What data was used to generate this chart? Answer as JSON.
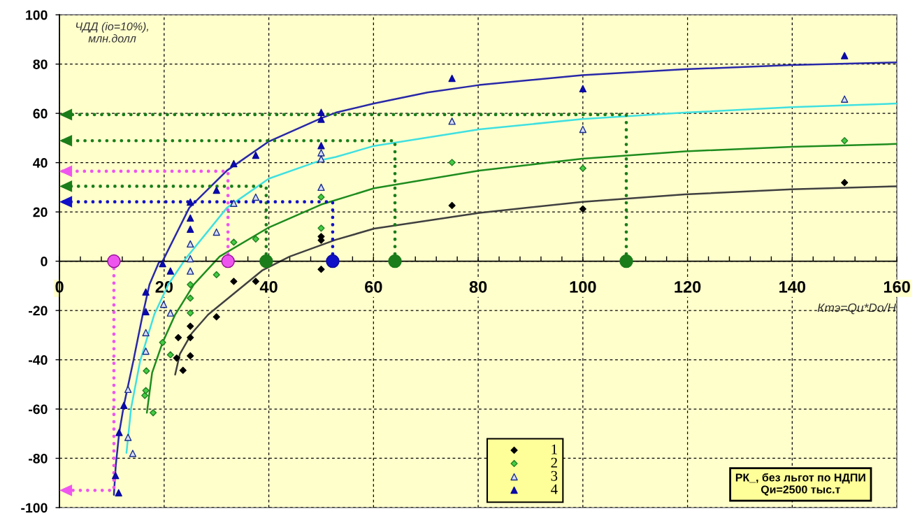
{
  "chart_data": {
    "type": "scatter",
    "xlabel": "Ктэ=Qи*Dо/H",
    "ylabel": "ЧДД (io=10%),\nмлн.долл",
    "annotations": [
      "РК_, без льгот по НДПИ\nQи=2500 тыс.т"
    ],
    "xlim": [
      0,
      160
    ],
    "ylim": [
      -100,
      100
    ],
    "xticks": [
      0,
      {
        "value": 4,
        "label": null
      },
      {
        "value": 8,
        "label": null
      },
      {
        "value": 12,
        "label": null
      },
      {
        "value": 16,
        "label": null
      },
      20,
      {
        "value": 24,
        "label": null
      },
      {
        "value": 28,
        "label": null
      },
      {
        "value": 32,
        "label": null
      },
      {
        "value": 36,
        "label": null
      },
      40,
      {
        "value": 44,
        "label": null
      },
      {
        "value": 48,
        "label": null
      },
      {
        "value": 52,
        "label": null
      },
      {
        "value": 56,
        "label": null
      },
      60,
      {
        "value": 64,
        "label": null
      },
      {
        "value": 68,
        "label": null
      },
      {
        "value": 72,
        "label": null
      },
      {
        "value": 76,
        "label": null
      },
      80,
      {
        "value": 84,
        "label": null
      },
      {
        "value": 88,
        "label": null
      },
      {
        "value": 92,
        "label": null
      },
      {
        "value": 96,
        "label": null
      },
      100,
      {
        "value": 104,
        "label": null
      },
      {
        "value": 108,
        "label": null
      },
      {
        "value": 112,
        "label": null
      },
      {
        "value": 116,
        "label": null
      },
      120,
      {
        "value": 124,
        "label": null
      },
      {
        "value": 128,
        "label": null
      },
      {
        "value": 132,
        "label": null
      },
      {
        "value": 136,
        "label": null
      },
      140,
      {
        "value": 144,
        "label": null
      },
      {
        "value": 148,
        "label": null
      },
      {
        "value": 152,
        "label": null
      },
      {
        "value": 156,
        "label": null
      },
      160
    ],
    "yticks": [
      -100,
      -80,
      -60,
      -40,
      -20,
      0,
      20,
      40,
      60,
      80,
      100
    ],
    "grid": true,
    "legend": "bottom",
    "series": [
      {
        "type": "line",
        "color": "#2828a8",
        "line_style": "solid",
        "x": [
          10.4,
          10.75,
          11.4,
          12.3,
          14.1,
          15.9,
          17.2,
          19,
          19.7,
          24.8,
          32,
          40,
          50,
          52.8,
          60.1,
          70.3,
          80.2,
          99.9,
          119.5,
          139.9,
          160
        ],
        "values": [
          -94.8,
          -83,
          -69.8,
          -58.5,
          -40.6,
          -21.7,
          -9.4,
          -0.5,
          0,
          21.7,
          36.8,
          48.6,
          58,
          60.3,
          64,
          68.5,
          71.5,
          75.5,
          77.9,
          79.6,
          80.7
        ]
      },
      {
        "type": "line",
        "color": "#40e0e0",
        "line_style": "solid",
        "x": [
          12.8,
          13.7,
          15.4,
          18.1,
          20.8,
          24.1,
          32,
          40,
          50,
          52.8,
          60.1,
          80.2,
          99.9,
          119.5,
          139.9,
          160
        ],
        "values": [
          -77.8,
          -59.4,
          -40.6,
          -21.7,
          -9.4,
          1,
          21.7,
          33.5,
          41,
          42.3,
          46.8,
          53.5,
          57.7,
          60.3,
          62.5,
          64
        ]
      },
      {
        "type": "line",
        "color": "#1e8c1e",
        "line_style": "solid",
        "x": [
          16.7,
          17.7,
          19.7,
          22.1,
          25.7,
          30.6,
          40,
          50,
          60.1,
          80.2,
          99.9,
          119.5,
          139.9,
          160
        ],
        "values": [
          -61.5,
          -45.3,
          -33,
          -21.7,
          -9.4,
          1.9,
          13.7,
          23,
          29.6,
          36.8,
          41.6,
          44.6,
          46.4,
          47.6
        ]
      },
      {
        "type": "line",
        "color": "#404040",
        "line_style": "solid",
        "x": [
          22.1,
          23,
          25.3,
          28.4,
          33.3,
          38.7,
          44,
          52.8,
          60.1,
          80.2,
          99.9,
          119.5,
          139.9,
          160
        ],
        "values": [
          -46,
          -37.7,
          -29.2,
          -21.7,
          -13.2,
          -3.8,
          1.9,
          8.7,
          13.2,
          19.6,
          24.1,
          27.1,
          29.2,
          30.4
        ]
      },
      {
        "type": "line",
        "color": "#ee55ee",
        "line_style": "dotted",
        "x": [
          32.2,
          32.2,
          0
        ],
        "values": [
          0,
          36.5,
          36.5
        ]
      },
      {
        "type": "line",
        "color": "#ee55ee",
        "line_style": "dotted",
        "x": [
          10.4,
          10.4,
          0
        ],
        "values": [
          0,
          -93,
          -93
        ]
      },
      {
        "type": "line",
        "color": "#1a7d1a",
        "line_style": "dotted",
        "x": [
          39.5,
          39.5,
          0
        ],
        "values": [
          0,
          30.4,
          30.4
        ]
      },
      {
        "type": "line",
        "color": "#1a7d1a",
        "line_style": "dotted",
        "x": [
          64.1,
          64.1,
          0
        ],
        "values": [
          0,
          48.9,
          48.9
        ]
      },
      {
        "type": "line",
        "color": "#1a7d1a",
        "line_style": "dotted",
        "x": [
          108.3,
          108.3,
          0
        ],
        "values": [
          0,
          59.5,
          59.5
        ]
      },
      {
        "type": "line",
        "color": "#1010c8",
        "line_style": "dotted",
        "x": [
          52.2,
          52.2,
          0
        ],
        "values": [
          0,
          24.1,
          24.1
        ]
      },
      {
        "name": "1",
        "color": "#000000",
        "marker": "diamond",
        "x": [
          22.4,
          22.7,
          23.6,
          25,
          25,
          25,
          30,
          33.3,
          37.5,
          50,
          50,
          50,
          75,
          100,
          150
        ],
        "values": [
          -39.3,
          -31,
          -44.3,
          -26.4,
          -31,
          -38.4,
          -22.6,
          -8.2,
          -8.2,
          10,
          8.5,
          -3.3,
          22.6,
          21.2,
          31.9
        ]
      },
      {
        "name": "2",
        "color": "#44cc44",
        "marker": "diamond",
        "x": [
          16.3,
          16.5,
          16.6,
          17.9,
          19.7,
          21.2,
          25,
          25,
          25,
          30,
          33.3,
          37.5,
          50,
          50,
          75,
          100,
          150
        ],
        "values": [
          -54.5,
          -52.5,
          -44.5,
          -61.5,
          -33,
          -38,
          -9.5,
          -15,
          -21,
          -5.5,
          7.7,
          9,
          26,
          13.4,
          40.1,
          37.7,
          48.9
        ]
      },
      {
        "name": "3",
        "color": "#d8def8",
        "marker": "triangle",
        "x": [
          13.1,
          13.1,
          14,
          16.5,
          16.5,
          19.9,
          21.2,
          25,
          25,
          25,
          30,
          33.3,
          37.5,
          50,
          50,
          50,
          75,
          100,
          150
        ],
        "values": [
          -52,
          -71.5,
          -78,
          -29,
          -36.5,
          -17.5,
          -21,
          7,
          1,
          -4,
          11.8,
          23.5,
          26,
          44,
          41.5,
          30,
          56.8,
          53.5,
          65.8
        ]
      },
      {
        "name": "4",
        "color": "#0a0ab0",
        "marker": "triangle",
        "x": [
          10.7,
          11.3,
          11.4,
          12.3,
          16.5,
          16.5,
          19.7,
          21.2,
          25,
          25,
          25,
          30,
          33.3,
          37.5,
          50,
          50,
          50,
          75,
          100,
          150
        ],
        "values": [
          -87,
          -94,
          -69.5,
          -58.5,
          -12.5,
          -20.5,
          -1,
          -4,
          24,
          17.5,
          13,
          28.8,
          39.6,
          43,
          60.4,
          57.6,
          46.9,
          74.2,
          70,
          83.4
        ]
      },
      {
        "color": "#ee55ee",
        "marker": "circle",
        "x": [
          10.4,
          32.2
        ],
        "values": [
          0,
          0
        ]
      },
      {
        "color": "#1a7d1a",
        "marker": "circle",
        "x": [
          39.5,
          64.1,
          108.3
        ],
        "values": [
          0,
          0,
          0
        ]
      },
      {
        "color": "#1010c8",
        "marker": "circle",
        "x": [
          52.2
        ],
        "values": [
          0
        ]
      }
    ]
  }
}
